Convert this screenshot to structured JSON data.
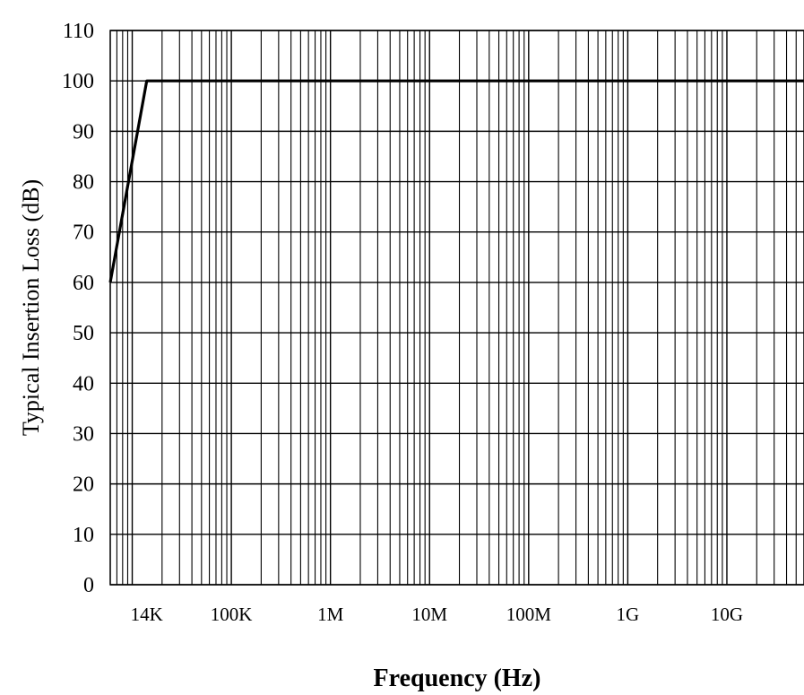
{
  "chart_data": {
    "type": "line",
    "title": "",
    "xlabel": "Frequency (Hz)",
    "ylabel": "Typical Insertion Loss (dB)",
    "x_scale": "log",
    "xlim": [
      6000,
      60000000000
    ],
    "ylim": [
      0,
      110
    ],
    "grid": true,
    "x_ticks": [
      {
        "value": 14000,
        "label": "14K"
      },
      {
        "value": 100000,
        "label": "100K"
      },
      {
        "value": 1000000,
        "label": "1M"
      },
      {
        "value": 10000000,
        "label": "10M"
      },
      {
        "value": 100000000,
        "label": "100M"
      },
      {
        "value": 1000000000,
        "label": "1G"
      },
      {
        "value": 10000000000,
        "label": "10G"
      }
    ],
    "y_ticks": [
      0,
      10,
      20,
      30,
      40,
      50,
      60,
      70,
      80,
      90,
      100,
      110
    ],
    "series": [
      {
        "x": [
          6000,
          14000,
          60000000000
        ],
        "y": [
          60,
          100,
          100
        ],
        "color": "#000000"
      }
    ]
  }
}
